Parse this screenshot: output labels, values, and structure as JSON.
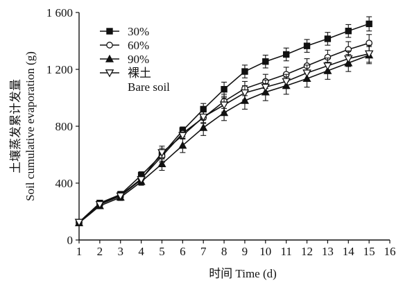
{
  "chart_data": {
    "type": "line",
    "xlabel": "时间 Time (d)",
    "ylabel_cn": "土壤蒸发累计发量",
    "ylabel_en": "Soil cumulative evaporation (g)",
    "xlim": [
      1,
      16
    ],
    "ylim": [
      0,
      1600
    ],
    "xticks": [
      1,
      2,
      3,
      4,
      5,
      6,
      7,
      8,
      9,
      10,
      11,
      12,
      13,
      14,
      15,
      16
    ],
    "yticks": [
      0,
      400,
      800,
      1200,
      1600
    ],
    "ytick_labels": [
      "0",
      "400",
      "800",
      "1 200",
      "1 600"
    ],
    "legend_position": "top-left",
    "x": [
      1,
      2,
      3,
      4,
      5,
      6,
      7,
      8,
      9,
      10,
      11,
      12,
      13,
      14,
      15
    ],
    "series": [
      {
        "name": "30%",
        "marker": "filled-square",
        "values": [
          125,
          260,
          320,
          455,
          600,
          770,
          920,
          1060,
          1185,
          1255,
          1305,
          1365,
          1415,
          1470,
          1520
        ],
        "errors": [
          15,
          20,
          22,
          25,
          45,
          25,
          40,
          50,
          45,
          45,
          45,
          45,
          45,
          45,
          50
        ]
      },
      {
        "name": "60%",
        "marker": "open-circle",
        "values": [
          125,
          255,
          315,
          430,
          590,
          750,
          860,
          975,
          1065,
          1115,
          1165,
          1225,
          1285,
          1340,
          1385
        ],
        "errors": [
          15,
          20,
          22,
          25,
          45,
          25,
          40,
          50,
          50,
          50,
          50,
          50,
          50,
          55,
          60
        ]
      },
      {
        "name": "90%",
        "marker": "filled-triangle",
        "values": [
          120,
          240,
          300,
          410,
          535,
          665,
          790,
          895,
          980,
          1040,
          1085,
          1135,
          1190,
          1245,
          1300
        ],
        "errors": [
          15,
          20,
          22,
          25,
          45,
          50,
          55,
          55,
          60,
          60,
          60,
          60,
          60,
          60,
          60
        ]
      },
      {
        "name": "裸土",
        "name_line2": "Bare soil",
        "marker": "open-down-triangle",
        "values": [
          125,
          250,
          310,
          425,
          615,
          735,
          865,
          950,
          1035,
          1075,
          1115,
          1175,
          1225,
          1275,
          1310
        ],
        "errors": [
          15,
          20,
          22,
          25,
          45,
          25,
          40,
          50,
          50,
          50,
          50,
          55,
          55,
          55,
          60
        ]
      }
    ]
  }
}
